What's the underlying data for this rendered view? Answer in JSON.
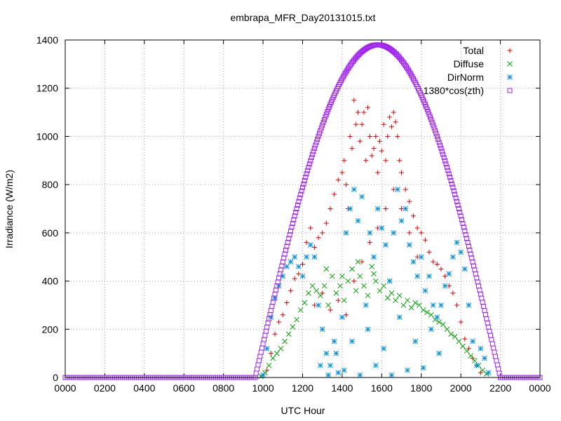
{
  "chart_data": {
    "type": "scatter",
    "title": "embrapa_MFR_Day20131015.txt",
    "xlabel": "UTC Hour",
    "ylabel": "Irradiance (W/m2)",
    "xlim": [
      0,
      24
    ],
    "ylim": [
      0,
      1400
    ],
    "x_ticks": [
      0,
      2,
      4,
      6,
      8,
      10,
      12,
      14,
      16,
      18,
      20,
      22,
      24
    ],
    "x_tick_labels": [
      "0000",
      "0200",
      "0400",
      "0600",
      "0800",
      "1000",
      "1200",
      "1400",
      "1600",
      "1800",
      "2000",
      "2200",
      "0000"
    ],
    "y_ticks": [
      0,
      200,
      400,
      600,
      800,
      1000,
      1200,
      1400
    ],
    "y_tick_labels": [
      "0",
      "200",
      "400",
      "600",
      "800",
      "1000",
      "1200",
      "1400"
    ],
    "grid": true,
    "legend_position": "top-right",
    "series": [
      {
        "name": "Total",
        "marker": "plus",
        "color": "#e00000",
        "points": [
          [
            10.2,
            30
          ],
          [
            10.4,
            100
          ],
          [
            10.6,
            180
          ],
          [
            10.8,
            230
          ],
          [
            11.0,
            260
          ],
          [
            11.2,
            310
          ],
          [
            11.4,
            360
          ],
          [
            11.6,
            410
          ],
          [
            11.8,
            430
          ],
          [
            12.0,
            470
          ],
          [
            12.2,
            560
          ],
          [
            12.4,
            620
          ],
          [
            12.6,
            540
          ],
          [
            12.8,
            580
          ],
          [
            13.0,
            600
          ],
          [
            13.2,
            640
          ],
          [
            13.4,
            700
          ],
          [
            13.6,
            760
          ],
          [
            13.8,
            820
          ],
          [
            14.0,
            850
          ],
          [
            14.1,
            900
          ],
          [
            14.2,
            800
          ],
          [
            14.3,
            700
          ],
          [
            14.4,
            1000
          ],
          [
            14.5,
            950
          ],
          [
            14.6,
            1150
          ],
          [
            14.7,
            1050
          ],
          [
            14.8,
            1100
          ],
          [
            14.9,
            980
          ],
          [
            15.0,
            1050
          ],
          [
            15.1,
            1100
          ],
          [
            15.2,
            900
          ],
          [
            15.3,
            1120
          ],
          [
            15.4,
            1000
          ],
          [
            15.5,
            920
          ],
          [
            15.6,
            950
          ],
          [
            15.7,
            1000
          ],
          [
            15.8,
            850
          ],
          [
            15.9,
            980
          ],
          [
            16.0,
            940
          ],
          [
            16.1,
            1050
          ],
          [
            16.2,
            900
          ],
          [
            16.3,
            1000
          ],
          [
            16.4,
            1080
          ],
          [
            16.5,
            1040
          ],
          [
            16.6,
            1100
          ],
          [
            16.7,
            1060
          ],
          [
            16.8,
            1000
          ],
          [
            16.9,
            900
          ],
          [
            17.0,
            850
          ],
          [
            17.2,
            780
          ],
          [
            17.4,
            730
          ],
          [
            17.6,
            670
          ],
          [
            17.8,
            620
          ],
          [
            18.0,
            600
          ],
          [
            18.2,
            570
          ],
          [
            18.4,
            520
          ],
          [
            18.6,
            480
          ],
          [
            18.8,
            470
          ],
          [
            19.0,
            450
          ],
          [
            19.2,
            420
          ],
          [
            19.4,
            380
          ],
          [
            19.6,
            350
          ],
          [
            19.8,
            300
          ],
          [
            20.0,
            230
          ],
          [
            20.2,
            160
          ],
          [
            20.4,
            120
          ],
          [
            20.6,
            80
          ],
          [
            20.8,
            50
          ],
          [
            21.0,
            20
          ],
          [
            12.6,
            300
          ],
          [
            13.0,
            350
          ],
          [
            13.4,
            280
          ],
          [
            13.8,
            320
          ],
          [
            14.2,
            260
          ],
          [
            14.6,
            400
          ],
          [
            15.0,
            480
          ],
          [
            15.4,
            560
          ],
          [
            15.8,
            620
          ],
          [
            16.2,
            700
          ],
          [
            16.6,
            780
          ],
          [
            17.0,
            700
          ],
          [
            17.4,
            600
          ],
          [
            17.8,
            500
          ]
        ]
      },
      {
        "name": "Diffuse",
        "marker": "cross",
        "color": "#00a000",
        "points": [
          [
            9.9,
            5
          ],
          [
            10.1,
            20
          ],
          [
            10.3,
            50
          ],
          [
            10.5,
            80
          ],
          [
            10.7,
            100
          ],
          [
            10.9,
            120
          ],
          [
            11.1,
            150
          ],
          [
            11.3,
            180
          ],
          [
            11.5,
            210
          ],
          [
            11.7,
            240
          ],
          [
            11.9,
            280
          ],
          [
            12.1,
            310
          ],
          [
            12.3,
            350
          ],
          [
            12.5,
            380
          ],
          [
            12.7,
            360
          ],
          [
            12.9,
            340
          ],
          [
            13.1,
            380
          ],
          [
            13.3,
            300
          ],
          [
            13.5,
            420
          ],
          [
            13.7,
            350
          ],
          [
            13.9,
            380
          ],
          [
            14.1,
            320
          ],
          [
            14.3,
            400
          ],
          [
            14.5,
            450
          ],
          [
            14.7,
            360
          ],
          [
            14.9,
            420
          ],
          [
            15.1,
            380
          ],
          [
            15.3,
            340
          ],
          [
            15.5,
            460
          ],
          [
            15.7,
            400
          ],
          [
            15.9,
            360
          ],
          [
            16.1,
            380
          ],
          [
            16.3,
            330
          ],
          [
            16.5,
            350
          ],
          [
            16.7,
            320
          ],
          [
            16.9,
            340
          ],
          [
            17.1,
            300
          ],
          [
            17.3,
            320
          ],
          [
            17.5,
            290
          ],
          [
            17.7,
            310
          ],
          [
            17.9,
            300
          ],
          [
            18.1,
            280
          ],
          [
            18.3,
            270
          ],
          [
            18.5,
            260
          ],
          [
            18.7,
            240
          ],
          [
            18.9,
            230
          ],
          [
            19.1,
            220
          ],
          [
            19.3,
            200
          ],
          [
            19.5,
            180
          ],
          [
            19.7,
            170
          ],
          [
            19.9,
            150
          ],
          [
            20.1,
            130
          ],
          [
            20.3,
            110
          ],
          [
            20.5,
            90
          ],
          [
            20.7,
            70
          ],
          [
            20.9,
            50
          ],
          [
            21.1,
            30
          ],
          [
            21.3,
            15
          ],
          [
            13.2,
            450
          ],
          [
            14.0,
            420
          ],
          [
            14.8,
            480
          ],
          [
            15.6,
            430
          ],
          [
            16.4,
            400
          ]
        ]
      },
      {
        "name": "DirNorm",
        "marker": "star",
        "color": "#0090e0",
        "points": [
          [
            10.0,
            10
          ],
          [
            10.2,
            120
          ],
          [
            10.4,
            250
          ],
          [
            10.6,
            330
          ],
          [
            10.8,
            380
          ],
          [
            11.0,
            420
          ],
          [
            11.2,
            460
          ],
          [
            11.4,
            480
          ],
          [
            11.6,
            500
          ],
          [
            11.8,
            460
          ],
          [
            12.0,
            420
          ],
          [
            12.2,
            500
          ],
          [
            12.4,
            550
          ],
          [
            12.6,
            500
          ],
          [
            12.8,
            300
          ],
          [
            13.0,
            200
          ],
          [
            13.2,
            100
          ],
          [
            13.4,
            50
          ],
          [
            13.6,
            150
          ],
          [
            13.8,
            20
          ],
          [
            14.0,
            250
          ],
          [
            14.2,
            600
          ],
          [
            14.4,
            700
          ],
          [
            14.6,
            780
          ],
          [
            14.8,
            650
          ],
          [
            15.0,
            750
          ],
          [
            15.2,
            300
          ],
          [
            15.4,
            600
          ],
          [
            15.6,
            500
          ],
          [
            15.8,
            700
          ],
          [
            16.0,
            620
          ],
          [
            16.2,
            550
          ],
          [
            16.4,
            400
          ],
          [
            16.6,
            600
          ],
          [
            16.8,
            780
          ],
          [
            17.0,
            650
          ],
          [
            17.2,
            700
          ],
          [
            17.4,
            550
          ],
          [
            17.6,
            480
          ],
          [
            17.8,
            420
          ],
          [
            18.0,
            500
          ],
          [
            18.2,
            360
          ],
          [
            18.4,
            420
          ],
          [
            18.6,
            300
          ],
          [
            18.8,
            250
          ],
          [
            19.0,
            300
          ],
          [
            19.2,
            380
          ],
          [
            19.4,
            430
          ],
          [
            19.6,
            500
          ],
          [
            19.8,
            560
          ],
          [
            20.0,
            520
          ],
          [
            20.2,
            450
          ],
          [
            20.4,
            300
          ],
          [
            20.6,
            150
          ],
          [
            20.8,
            50
          ],
          [
            21.0,
            120
          ],
          [
            21.2,
            80
          ],
          [
            21.4,
            20
          ],
          [
            12.9,
            50
          ],
          [
            13.3,
            10
          ],
          [
            13.7,
            100
          ],
          [
            14.1,
            30
          ],
          [
            14.5,
            150
          ],
          [
            14.9,
            10
          ],
          [
            15.3,
            200
          ],
          [
            15.7,
            50
          ],
          [
            16.1,
            120
          ],
          [
            16.5,
            10
          ],
          [
            16.9,
            250
          ],
          [
            17.3,
            30
          ],
          [
            17.7,
            150
          ],
          [
            18.1,
            40
          ],
          [
            18.5,
            200
          ],
          [
            18.9,
            100
          ]
        ]
      },
      {
        "name": "1380*cos(zth)",
        "marker": "square",
        "color": "#a020f0",
        "curve": {
          "amplitude": 1380,
          "peak_hour": 15.8,
          "start_hour": 9.6,
          "end_hour": 22.0,
          "step_hour": 0.05
        }
      }
    ]
  }
}
